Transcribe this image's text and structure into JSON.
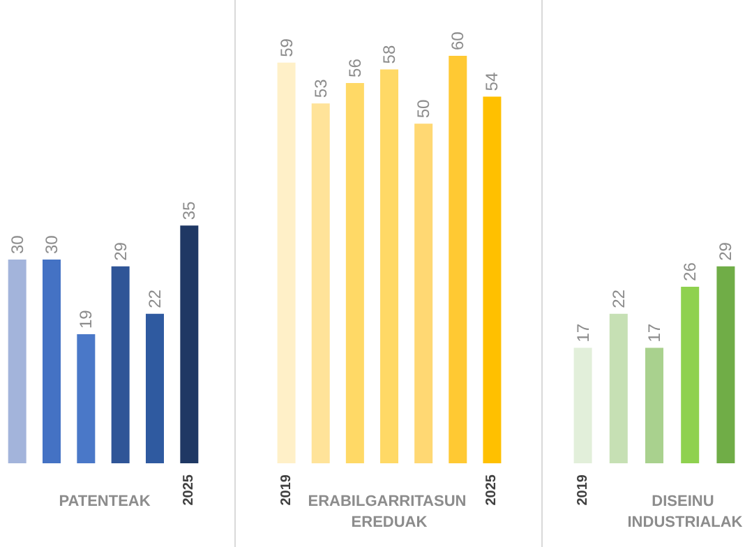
{
  "chart_data": [
    {
      "type": "bar",
      "xlabel": "PATENTEAK",
      "categories": [
        null,
        null,
        null,
        null,
        null,
        "2025"
      ],
      "values": [
        30,
        30,
        19,
        29,
        22,
        35
      ],
      "colors": [
        "#a3b4db",
        "#4472c4",
        "#4a78c8",
        "#2f5597",
        "#2f5aa0",
        "#1f3864"
      ],
      "data_labels": true,
      "tick_labels": "x"
    },
    {
      "type": "bar",
      "xlabel": "ERABILGARRITASUN EREDUAK",
      "categories": [
        "2019",
        null,
        null,
        null,
        null,
        null,
        "2025"
      ],
      "values": [
        59,
        53,
        56,
        58,
        50,
        60,
        54
      ],
      "colors": [
        "#fff0c8",
        "#ffe399",
        "#ffd966",
        "#ffd966",
        "#ffd873",
        "#ffc933",
        "#ffc000"
      ],
      "data_labels": true,
      "tick_labels": "x"
    },
    {
      "type": "bar",
      "xlabel": "DISEINU INDUSTRIALAK",
      "categories": [
        "2019",
        null,
        null,
        null,
        null
      ],
      "values": [
        17,
        22,
        17,
        26,
        29
      ],
      "colors": [
        "#e2efda",
        "#c6e0b4",
        "#a9d18e",
        "#8fd14f",
        "#70ad47"
      ],
      "data_labels": true,
      "tick_labels": "x"
    }
  ]
}
